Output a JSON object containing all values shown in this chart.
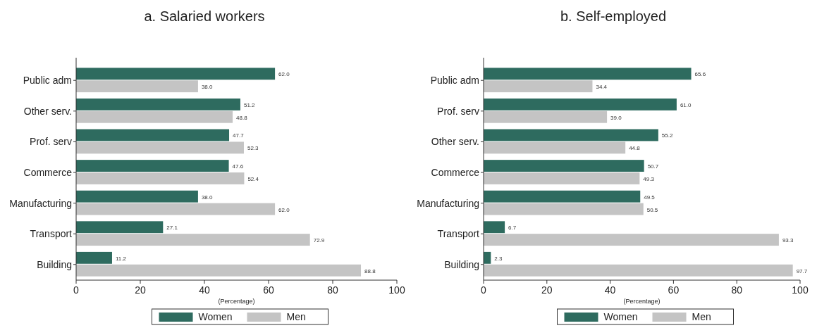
{
  "chart_data": [
    {
      "type": "bar",
      "orientation": "horizontal",
      "title": "a.   Salaried workers",
      "xlabel": "(Percentage)",
      "categories": [
        "Public adm",
        "Other serv.",
        "Prof. serv",
        "Commerce",
        "Manufacturing",
        "Transport",
        "Building"
      ],
      "series": [
        {
          "name": "Women",
          "color": "#2e6b5f",
          "values": [
            62.0,
            51.2,
            47.7,
            47.6,
            38.0,
            27.1,
            11.2
          ],
          "value_labels": [
            "62.0",
            "51.2",
            "47.7",
            "47.6",
            "38.0",
            "27.1",
            "11.2"
          ]
        },
        {
          "name": "Men",
          "color": "#c4c4c4",
          "values": [
            38.0,
            48.8,
            52.3,
            52.4,
            62.0,
            72.9,
            88.8
          ],
          "value_labels": [
            "38.0",
            "48.8",
            "52.3",
            "52.4",
            "62.0",
            "72.9",
            "88.8"
          ]
        }
      ],
      "xlim": [
        0,
        100
      ],
      "xticks": [
        0,
        20,
        40,
        60,
        80,
        100
      ],
      "grid": false,
      "legend": "bottom"
    },
    {
      "type": "bar",
      "orientation": "horizontal",
      "title": "b.   Self-employed",
      "xlabel": "(Percentage)",
      "categories": [
        "Public adm",
        "Prof. serv",
        "Other serv.",
        "Commerce",
        "Manufacturing",
        "Transport",
        "Building"
      ],
      "series": [
        {
          "name": "Women",
          "color": "#2e6b5f",
          "values": [
            65.6,
            61.0,
            55.2,
            50.7,
            49.5,
            6.7,
            2.3
          ],
          "value_labels": [
            "65.6",
            "61.0",
            "55.2",
            "50.7",
            "49.5",
            "6.7",
            "2.3"
          ]
        },
        {
          "name": "Men",
          "color": "#c4c4c4",
          "values": [
            34.4,
            39.0,
            44.8,
            49.3,
            50.5,
            93.3,
            97.7
          ],
          "value_labels": [
            "34.4",
            "39.0",
            "44.8",
            "49.3",
            "50.5",
            "93.3",
            "97.7"
          ]
        }
      ],
      "xlim": [
        0,
        100
      ],
      "xticks": [
        0,
        20,
        40,
        60,
        80,
        100
      ],
      "grid": false,
      "legend": "bottom"
    }
  ]
}
